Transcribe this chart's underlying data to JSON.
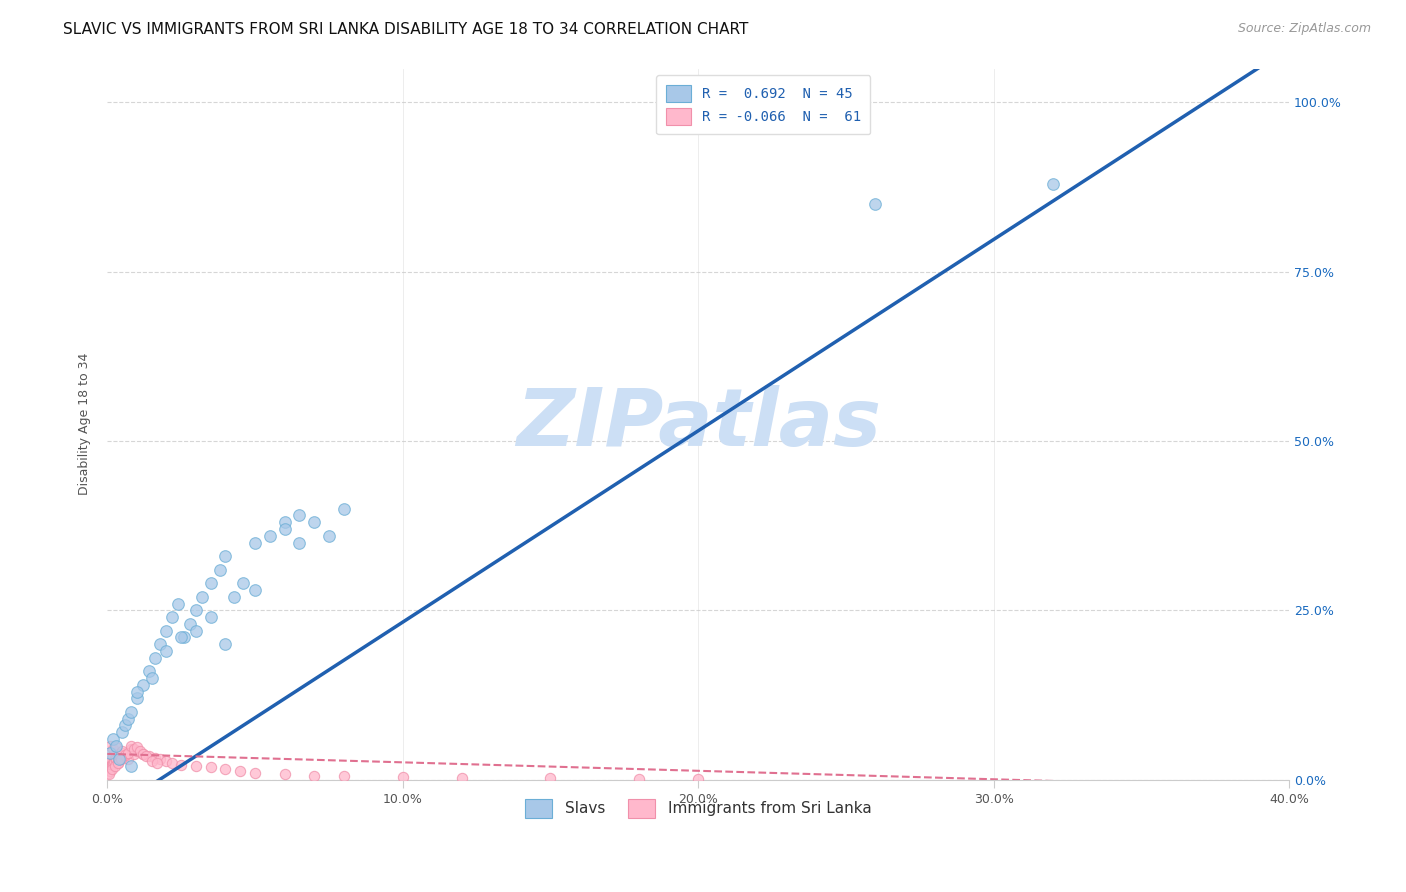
{
  "title": "SLAVIC VS IMMIGRANTS FROM SRI LANKA DISABILITY AGE 18 TO 34 CORRELATION CHART",
  "source": "Source: ZipAtlas.com",
  "ylabel": "Disability Age 18 to 34",
  "xlim": [
    0.0,
    0.4
  ],
  "ylim": [
    0.0,
    1.05
  ],
  "xticks": [
    0.0,
    0.1,
    0.2,
    0.3,
    0.4
  ],
  "xticklabels": [
    "0.0%",
    "10.0%",
    "20.0%",
    "30.0%",
    "40.0%"
  ],
  "yticks": [
    0.0,
    0.25,
    0.5,
    0.75,
    1.0
  ],
  "yticklabels": [
    "0.0%",
    "25.0%",
    "50.0%",
    "75.0%",
    "100.0%"
  ],
  "grid_color": "#cccccc",
  "background_color": "#ffffff",
  "watermark": "ZIPatlas",
  "watermark_color": "#ccdff5",
  "blue_color": "#a8c8e8",
  "blue_edge_color": "#6baed6",
  "pink_color": "#ffb8cc",
  "pink_edge_color": "#f090aa",
  "blue_line_color": "#2060b0",
  "pink_line_color": "#e07090",
  "legend_label1": "Slavs",
  "legend_label2": "Immigrants from Sri Lanka",
  "slavs_x": [
    0.001,
    0.002,
    0.003,
    0.004,
    0.005,
    0.006,
    0.007,
    0.008,
    0.01,
    0.012,
    0.014,
    0.016,
    0.018,
    0.02,
    0.022,
    0.024,
    0.026,
    0.028,
    0.03,
    0.032,
    0.035,
    0.038,
    0.04,
    0.043,
    0.046,
    0.05,
    0.055,
    0.06,
    0.065,
    0.07,
    0.075,
    0.08,
    0.06,
    0.065,
    0.03,
    0.035,
    0.04,
    0.05,
    0.02,
    0.025,
    0.01,
    0.015,
    0.008,
    0.26,
    0.32
  ],
  "slavs_y": [
    0.04,
    0.06,
    0.05,
    0.03,
    0.07,
    0.08,
    0.09,
    0.1,
    0.12,
    0.14,
    0.16,
    0.18,
    0.2,
    0.22,
    0.24,
    0.26,
    0.21,
    0.23,
    0.25,
    0.27,
    0.29,
    0.31,
    0.33,
    0.27,
    0.29,
    0.35,
    0.36,
    0.38,
    0.39,
    0.38,
    0.36,
    0.4,
    0.37,
    0.35,
    0.22,
    0.24,
    0.2,
    0.28,
    0.19,
    0.21,
    0.13,
    0.15,
    0.02,
    0.85,
    0.88
  ],
  "srilanka_x": [
    0.0002,
    0.0004,
    0.0006,
    0.0008,
    0.001,
    0.0012,
    0.0014,
    0.0016,
    0.0018,
    0.002,
    0.0022,
    0.0025,
    0.003,
    0.0035,
    0.004,
    0.005,
    0.006,
    0.007,
    0.008,
    0.009,
    0.01,
    0.012,
    0.014,
    0.016,
    0.018,
    0.02,
    0.022,
    0.025,
    0.03,
    0.035,
    0.04,
    0.045,
    0.05,
    0.06,
    0.07,
    0.08,
    0.1,
    0.12,
    0.15,
    0.18,
    0.2,
    0.001,
    0.002,
    0.003,
    0.004,
    0.005,
    0.006,
    0.007,
    0.0005,
    0.0015,
    0.0025,
    0.0035,
    0.0045,
    0.008,
    0.009,
    0.01,
    0.011,
    0.012,
    0.013,
    0.015,
    0.017
  ],
  "srilanka_y": [
    0.01,
    0.015,
    0.02,
    0.012,
    0.025,
    0.018,
    0.03,
    0.022,
    0.035,
    0.025,
    0.028,
    0.032,
    0.03,
    0.025,
    0.035,
    0.04,
    0.035,
    0.03,
    0.045,
    0.038,
    0.042,
    0.038,
    0.035,
    0.032,
    0.03,
    0.028,
    0.025,
    0.022,
    0.02,
    0.018,
    0.015,
    0.012,
    0.01,
    0.008,
    0.006,
    0.005,
    0.004,
    0.003,
    0.002,
    0.001,
    0.001,
    0.05,
    0.045,
    0.048,
    0.038,
    0.042,
    0.036,
    0.04,
    0.008,
    0.015,
    0.02,
    0.025,
    0.03,
    0.05,
    0.045,
    0.048,
    0.042,
    0.038,
    0.035,
    0.028,
    0.025
  ],
  "blue_line_x": [
    0.0,
    0.4
  ],
  "blue_line_y": [
    -0.05,
    1.08
  ],
  "pink_line_x": [
    0.0,
    0.4
  ],
  "pink_line_y": [
    0.038,
    -0.012
  ],
  "marker_size": 70,
  "pink_marker_size": 55,
  "title_fontsize": 11,
  "axis_label_fontsize": 9,
  "tick_fontsize": 9,
  "source_fontsize": 9,
  "legend_fontsize": 10,
  "right_ytick_color": "#1a6abf",
  "tick_label_color": "#555555"
}
